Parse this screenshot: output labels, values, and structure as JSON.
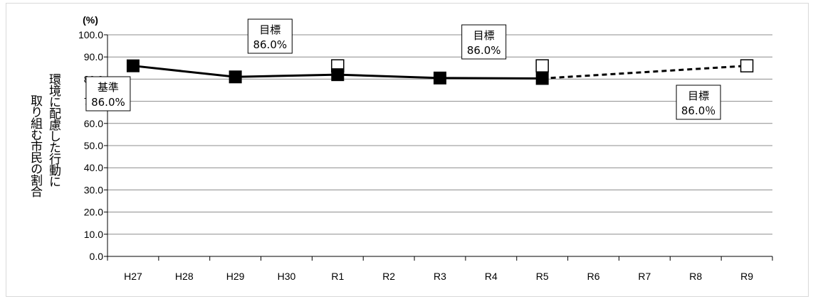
{
  "chart_data": {
    "type": "line",
    "unit_label": "(%)",
    "ylabel_lines": [
      "環境に配慮した行動に",
      "取り組む市民の割合"
    ],
    "categories": [
      "H27",
      "H28",
      "H29",
      "H30",
      "R1",
      "R2",
      "R3",
      "R4",
      "R5",
      "R6",
      "R7",
      "R8",
      "R9"
    ],
    "ylim": [
      0,
      100
    ],
    "yticks": [
      "0.0",
      "10.0",
      "20.0",
      "30.0",
      "40.0",
      "50.0",
      "60.0",
      "70.0",
      "80.0",
      "90.0",
      "100.0"
    ],
    "grid": true,
    "series": [
      {
        "style": "solid-black-square",
        "x": [
          "H27",
          "H29",
          "R1",
          "R3",
          "R5"
        ],
        "values": [
          86.0,
          81.0,
          82.0,
          80.5,
          80.3
        ]
      },
      {
        "style": "dashed-black",
        "x": [
          "R5",
          "R9"
        ],
        "values": [
          80.3,
          86.0
        ]
      },
      {
        "style": "target-hollow-square",
        "x": [
          "R1",
          "R5",
          "R9"
        ],
        "values": [
          86.0,
          86.0,
          86.0
        ]
      }
    ],
    "annotations": [
      {
        "line1": "基準",
        "line2": "86.0%",
        "at": "H27"
      },
      {
        "line1": "目標",
        "line2": "86.0%",
        "at": "R1"
      },
      {
        "line1": "目標",
        "line2": "86.0%",
        "at": "R5"
      },
      {
        "line1": "目標",
        "line2": "86.0％",
        "at": "R9"
      }
    ]
  }
}
